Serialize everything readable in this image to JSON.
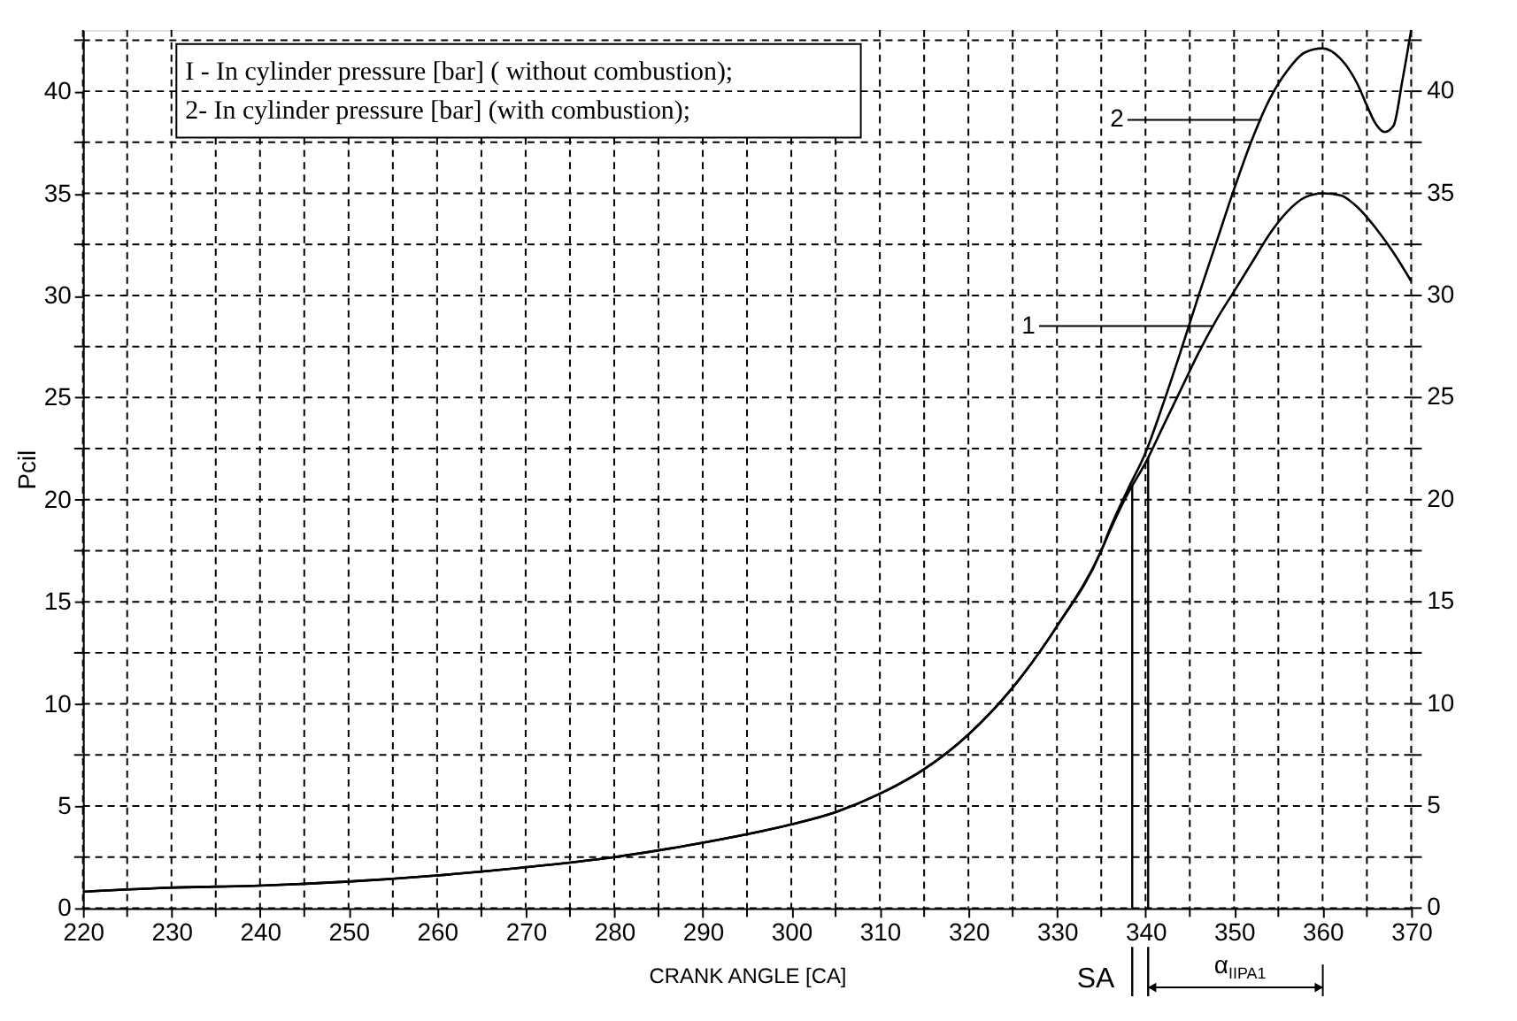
{
  "chart_data": {
    "type": "line",
    "xlabel": "CRANK ANGLE [CA]",
    "ylabel": "Pcil",
    "series": [
      {
        "color": "#000000",
        "x": [
          220,
          230,
          240,
          250,
          260,
          270,
          280,
          290,
          300,
          305,
          310,
          315,
          320,
          325,
          330,
          335,
          336,
          338,
          340,
          342,
          344,
          346,
          348,
          350,
          352,
          354,
          356,
          358,
          360,
          362,
          364,
          366,
          368,
          370
        ],
        "values": [
          0.8,
          1.0,
          1.1,
          1.3,
          1.6,
          2.0,
          2.5,
          3.2,
          4.1,
          4.7,
          5.6,
          6.8,
          8.5,
          10.8,
          13.8,
          17.5,
          18.5,
          20.3,
          21.8,
          23.6,
          25.4,
          27.2,
          28.8,
          30.2,
          31.6,
          33.0,
          34.1,
          34.8,
          35.0,
          34.9,
          34.3,
          33.3,
          32.1,
          30.7
        ]
      },
      {
        "color": "#000000",
        "x": [
          220,
          230,
          240,
          250,
          260,
          270,
          280,
          290,
          300,
          305,
          310,
          315,
          320,
          325,
          330,
          335,
          336,
          338,
          340,
          342,
          344,
          346,
          348,
          350,
          352,
          354,
          356,
          358,
          360,
          362,
          364,
          365,
          366,
          367,
          368,
          369,
          370
        ],
        "values": [
          0.8,
          1.0,
          1.1,
          1.3,
          1.6,
          2.0,
          2.5,
          3.2,
          4.1,
          4.7,
          5.6,
          6.8,
          8.5,
          10.8,
          13.8,
          17.5,
          18.6,
          20.5,
          22.3,
          24.7,
          27.3,
          30.0,
          32.6,
          35.2,
          37.6,
          39.6,
          41.0,
          41.9,
          42.1,
          41.6,
          40.3,
          39.3,
          38.4,
          38.0,
          38.3,
          40.5,
          43.0
        ]
      }
    ],
    "xlim": [
      220,
      370
    ],
    "xticks": [
      220,
      {
        "value": 225,
        "label": null
      },
      230,
      {
        "value": 235,
        "label": null
      },
      240,
      {
        "value": 245,
        "label": null
      },
      250,
      {
        "value": 255,
        "label": null
      },
      260,
      {
        "value": 265,
        "label": null
      },
      270,
      {
        "value": 275,
        "label": null
      },
      280,
      {
        "value": 285,
        "label": null
      },
      290,
      {
        "value": 295,
        "label": null
      },
      300,
      {
        "value": 305,
        "label": null
      },
      310,
      {
        "value": 315,
        "label": null
      },
      320,
      {
        "value": 325,
        "label": null
      },
      330,
      {
        "value": 335,
        "label": null
      },
      340,
      {
        "value": 345,
        "label": null
      },
      350,
      {
        "value": 355,
        "label": null
      },
      360,
      {
        "value": 365,
        "label": null
      },
      370
    ],
    "ylim": [
      0,
      43
    ],
    "yticks": [
      0,
      {
        "value": 2.5,
        "label": null
      },
      5,
      {
        "value": 7.5,
        "label": null
      },
      10,
      {
        "value": 12.5,
        "label": null
      },
      15,
      {
        "value": 17.5,
        "label": null
      },
      20,
      {
        "value": 22.5,
        "label": null
      },
      25,
      {
        "value": 27.5,
        "label": null
      },
      30,
      {
        "value": 32.5,
        "label": null
      },
      35,
      {
        "value": 37.5,
        "label": null
      },
      40,
      {
        "value": 42.5,
        "label": null
      }
    ],
    "y2lim": [
      0,
      43
    ],
    "y2ticks": [
      0,
      {
        "value": 2.5,
        "label": null
      },
      5,
      {
        "value": 7.5,
        "label": null
      },
      10,
      {
        "value": 12.5,
        "label": null
      },
      15,
      {
        "value": 17.5,
        "label": null
      },
      20,
      {
        "value": 22.5,
        "label": null
      },
      25,
      {
        "value": 27.5,
        "label": null
      },
      30,
      {
        "value": 32.5,
        "label": null
      },
      35,
      {
        "value": 37.5,
        "label": null
      },
      40,
      {
        "value": 42.5,
        "label": null
      }
    ],
    "grid": true,
    "line_style": "solid",
    "annotations": [
      "I - In cylinder pressure [bar] ( without combustion);",
      "2- In cylinder pressure [bar] (with combustion);",
      {
        "text": "1",
        "x": 347.7,
        "y": 28.5
      },
      {
        "text": "2",
        "x": 353.1,
        "y": 38.6
      },
      "α$_{IIPA1}$"
    ],
    "ref_lines": [
      {
        "axis": "x",
        "value": 338.5,
        "label": "SA"
      },
      {
        "axis": "x",
        "value": 340.3,
        "label": null
      }
    ]
  }
}
